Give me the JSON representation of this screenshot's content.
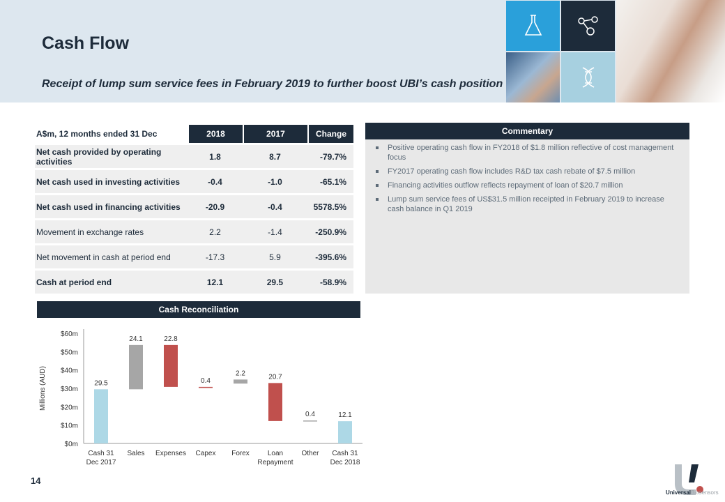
{
  "header": {
    "title": "Cash Flow",
    "subtitle": "Receipt of lump sum service fees in February 2019 to further boost UBI’s cash position",
    "tiles": [
      "flask-icon",
      "network-icon",
      "dna-icon"
    ]
  },
  "table": {
    "header": [
      "A$m, 12 months ended 31 Dec",
      "2018",
      "2017",
      "Change"
    ],
    "rows": [
      {
        "label": "Net cash provided by operating activities",
        "v2018": "1.8",
        "v2017": "8.7",
        "change": "-79.7%"
      },
      {
        "label": "Net cash used in investing activities",
        "v2018": "-0.4",
        "v2017": "-1.0",
        "change": "-65.1%"
      },
      {
        "label": "Net cash used in financing activities",
        "v2018": "-20.9",
        "v2017": "-0.4",
        "change": "5578.5%"
      },
      {
        "label": "Movement in exchange rates",
        "v2018": "2.2",
        "v2017": "-1.4",
        "change": "-250.9%"
      },
      {
        "label": "Net movement in cash at period end",
        "v2018": "-17.3",
        "v2017": "5.9",
        "change": "-395.6%"
      },
      {
        "label": "Cash at period end",
        "v2018": "12.1",
        "v2017": "29.5",
        "change": "-58.9%"
      }
    ]
  },
  "commentary": {
    "title": "Commentary",
    "bullets": [
      "Positive operating cash flow in FY2018 of $1.8 million reflective of cost management focus",
      "FY2017 operating cash flow includes R&D tax cash rebate of $7.5 million",
      "Financing activities outflow reflects repayment of loan of $20.7 million",
      "Lump sum service fees of US$31.5 million receipted in February 2019 to increase cash balance in Q1 2019"
    ]
  },
  "chart_data": {
    "type": "bar",
    "title": "Cash Reconciliation",
    "ylabel": "Millions (AUD)",
    "ylim": [
      0,
      60
    ],
    "yticks": [
      "$0m",
      "$10m",
      "$20m",
      "$30m",
      "$40m",
      "$50m",
      "$60m"
    ],
    "categories": [
      [
        "Cash 31",
        "Dec 2017"
      ],
      [
        "Sales"
      ],
      [
        "Expenses"
      ],
      [
        "Capex"
      ],
      [
        "Forex"
      ],
      [
        "Loan",
        "Repayment"
      ],
      [
        "Other"
      ],
      [
        "Cash 31",
        "Dec 2018"
      ]
    ],
    "bars": [
      {
        "start": 0,
        "end": 29.5,
        "label": "29.5",
        "color": "#add8e6"
      },
      {
        "start": 29.5,
        "end": 53.6,
        "label": "24.1",
        "color": "#a6a6a6"
      },
      {
        "start": 53.6,
        "end": 30.8,
        "label": "22.8",
        "color": "#c0504d"
      },
      {
        "start": 30.8,
        "end": 30.4,
        "label": "0.4",
        "color": "#c0504d"
      },
      {
        "start": 32.6,
        "end": 34.8,
        "label": "2.2",
        "color": "#a6a6a6"
      },
      {
        "start": 32.9,
        "end": 12.2,
        "label": "20.7",
        "color": "#c0504d"
      },
      {
        "start": 12.5,
        "end": 12.1,
        "label": "0.4",
        "color": "#a6a6a6"
      },
      {
        "start": 0,
        "end": 12.1,
        "label": "12.1",
        "color": "#add8e6"
      }
    ]
  },
  "footer": {
    "page_number": "14",
    "logo_bold": "Universal",
    "logo_light": "Biosensors"
  }
}
